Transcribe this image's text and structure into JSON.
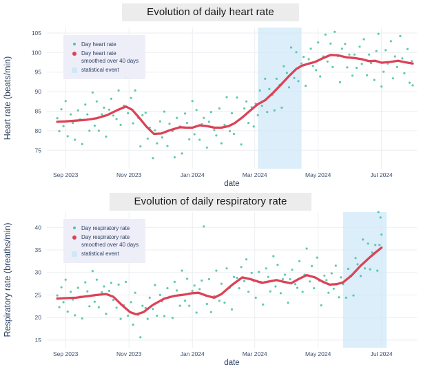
{
  "colors": {
    "scatter_points": "#4fc4a0",
    "smoothed_line": "#dc4257",
    "event_band": "#cfe8f8",
    "gridline": "#ebedf2",
    "axis_text": "#2a3f5f",
    "title_background": "#ececec",
    "legend_background": "#ededf8"
  },
  "chart_data": [
    {
      "type": "scatter",
      "title": "Evolution of daily heart rate",
      "xlabel": "date",
      "ylabel": "Heart rate (beats/min)",
      "x_ticks": [
        "Sep 2023",
        "Nov 2023",
        "Jan 2024",
        "Mar 2024",
        "May 2024",
        "Jul 2024"
      ],
      "x_tick_days": [
        0,
        61,
        122,
        182,
        243,
        304
      ],
      "xlim_days": [
        -18,
        338
      ],
      "y_ticks": [
        75,
        80,
        85,
        90,
        95,
        100,
        105
      ],
      "ylim": [
        70.3,
        106.4
      ],
      "grid": true,
      "legend_position": "top-left",
      "legend_items": [
        {
          "label": "Day heart rate",
          "label2": "",
          "marker": "scatter"
        },
        {
          "label": "Day heart rate",
          "label2": "smoothed over 40 days",
          "marker": "line"
        },
        {
          "label": "statistical event",
          "label2": "",
          "marker": "band"
        }
      ],
      "series": [
        {
          "name": "Day heart rate",
          "type": "points",
          "color": "#4fc4a0",
          "t": [
            -8,
            -6,
            -4,
            -2,
            0,
            2,
            5,
            7,
            9,
            12,
            14,
            16,
            19,
            21,
            23,
            26,
            28,
            30,
            32,
            35,
            37,
            39,
            42,
            44,
            46,
            49,
            51,
            53,
            56,
            58,
            60,
            63,
            65,
            67,
            70,
            72,
            74,
            77,
            79,
            81,
            84,
            86,
            88,
            91,
            93,
            95,
            98,
            100,
            103,
            105,
            107,
            110,
            112,
            115,
            117,
            119,
            122,
            124,
            126,
            129,
            131,
            133,
            136,
            138,
            140,
            143,
            145,
            148,
            150,
            153,
            155,
            158,
            160,
            162,
            165,
            167,
            169,
            172,
            174,
            176,
            179,
            181,
            183,
            185,
            187,
            189,
            192,
            194,
            196,
            199,
            201,
            203,
            206,
            208,
            210,
            213,
            215,
            217,
            220,
            222,
            224,
            227,
            229,
            231,
            234,
            236,
            238,
            241,
            243,
            245,
            248,
            250,
            252,
            255,
            257,
            259,
            262,
            264,
            266,
            269,
            271,
            273,
            276,
            278,
            280,
            283,
            285,
            287,
            290,
            292,
            294,
            297,
            299,
            301,
            304,
            306,
            308,
            310,
            313,
            315,
            317,
            319,
            322,
            324,
            326,
            329,
            331,
            333,
            334
          ],
          "y": [
            83.2,
            79.9,
            85.5,
            81.2,
            87.6,
            78.6,
            84.2,
            82.0,
            77.7,
            85.2,
            82.9,
            76.6,
            86.7,
            84.2,
            80.0,
            89.8,
            81.3,
            87.5,
            80.0,
            84.2,
            85.9,
            78.5,
            85.4,
            88.2,
            83.9,
            83.0,
            90.3,
            81.5,
            86.4,
            93.6,
            84.5,
            88.4,
            81.9,
            90.3,
            83.3,
            76.0,
            84.0,
            84.6,
            78.0,
            80.8,
            73.0,
            80.1,
            76.8,
            82.4,
            78.3,
            84.9,
            76.1,
            81.8,
            79.9,
            73.2,
            83.3,
            81.1,
            74.2,
            84.4,
            82.0,
            77.8,
            87.6,
            79.1,
            85.3,
            77.7,
            81.7,
            83.3,
            75.7,
            82.3,
            84.8,
            80.2,
            78.8,
            85.7,
            76.8,
            81.5,
            88.6,
            79.9,
            84.5,
            79.2,
            88.5,
            82.8,
            76.5,
            85.7,
            87.5,
            82.0,
            86.0,
            81.1,
            86.9,
            84.0,
            90.3,
            86.4,
            93.3,
            84.8,
            90.7,
            89.2,
            85.2,
            93.3,
            91.7,
            85.9,
            96.5,
            94.8,
            91.1,
            101.3,
            93.5,
            100.1,
            92.7,
            97.2,
            98.9,
            91.5,
            98.3,
            101.0,
            96.6,
            95.5,
            102.6,
            93.9,
            99.0,
            104.6,
            97.7,
            102.3,
            96.3,
            105.3,
            99.1,
            92.4,
            101.0,
            102.2,
            96.2,
            99.5,
            94.1,
            99.5,
            96.1,
            101.5,
            97.1,
            103.4,
            94.2,
            99.5,
            97.3,
            93.0,
            100.4,
            104.8,
            91.3,
            95.1,
            100.6,
            97.2,
            102.9,
            93.4,
            99.0,
            96.3,
            104.2,
            98.5,
            94.7,
            100.9,
            92.3,
            97.8,
            91.6
          ]
        },
        {
          "name": "Day heart rate smoothed over 40 days",
          "type": "line",
          "color": "#dc4257",
          "t": [
            -8,
            0,
            10,
            20,
            30,
            40,
            50,
            58,
            64,
            70,
            78,
            85,
            92,
            100,
            110,
            116,
            122,
            129,
            136,
            143,
            150,
            157,
            163,
            170,
            177,
            185,
            192,
            200,
            208,
            215,
            222,
            227,
            233,
            240,
            248,
            255,
            262,
            270,
            278,
            285,
            292,
            298,
            304,
            312,
            320,
            327,
            334
          ],
          "y": [
            82.3,
            82.4,
            82.6,
            82.8,
            83.2,
            84.0,
            85.3,
            86.2,
            85.4,
            83.6,
            81.0,
            79.2,
            79.3,
            80.1,
            80.9,
            80.8,
            80.8,
            81.4,
            81.2,
            80.8,
            80.8,
            81.2,
            82.0,
            83.4,
            85.0,
            86.8,
            87.8,
            89.8,
            92.0,
            94.0,
            95.8,
            96.6,
            97.1,
            97.6,
            98.6,
            99.4,
            99.3,
            98.8,
            98.6,
            98.3,
            97.8,
            97.9,
            97.4,
            97.6,
            97.9,
            97.5,
            97.2
          ]
        },
        {
          "name": "statistical event",
          "type": "band",
          "color": "#cfe8f8",
          "t_range": [
            185,
            227
          ]
        }
      ]
    },
    {
      "type": "scatter",
      "title": "Evolution of daily respiratory rate",
      "xlabel": "date",
      "ylabel": "Respiratory rate (breaths/min)",
      "x_ticks": [
        "Sep 2023",
        "Nov 2023",
        "Jan 2024",
        "Mar 2024",
        "May 2024",
        "Jul 2024"
      ],
      "x_tick_days": [
        0,
        61,
        122,
        182,
        243,
        304
      ],
      "xlim_days": [
        -18,
        338
      ],
      "y_ticks": [
        15,
        20,
        25,
        30,
        35,
        40
      ],
      "ylim": [
        13.3,
        43.4
      ],
      "grid": true,
      "legend_position": "top-left",
      "legend_items": [
        {
          "label": "Day respiratory rate",
          "label2": "",
          "marker": "scatter"
        },
        {
          "label": "Day respiratory rate",
          "label2": "smoothed over 40 days",
          "marker": "line"
        },
        {
          "label": "statistical event",
          "label2": "",
          "marker": "band"
        }
      ],
      "series": [
        {
          "name": "Day respiratory rate",
          "type": "points",
          "color": "#4fc4a0",
          "t": [
            -8,
            -6,
            -4,
            -2,
            0,
            2,
            5,
            7,
            9,
            12,
            14,
            16,
            19,
            21,
            23,
            26,
            28,
            30,
            32,
            35,
            37,
            39,
            42,
            44,
            46,
            49,
            51,
            53,
            56,
            58,
            60,
            63,
            65,
            67,
            70,
            72,
            74,
            77,
            79,
            81,
            84,
            86,
            88,
            91,
            93,
            95,
            98,
            100,
            103,
            105,
            107,
            110,
            112,
            115,
            117,
            119,
            122,
            124,
            126,
            129,
            131,
            133,
            136,
            138,
            140,
            143,
            145,
            148,
            150,
            153,
            155,
            158,
            160,
            162,
            165,
            167,
            169,
            172,
            174,
            176,
            179,
            181,
            183,
            186,
            188,
            190,
            193,
            195,
            197,
            200,
            202,
            204,
            207,
            209,
            211,
            214,
            216,
            218,
            221,
            223,
            225,
            228,
            230,
            232,
            235,
            237,
            239,
            242,
            244,
            246,
            249,
            251,
            253,
            256,
            258,
            260,
            263,
            265,
            267,
            270,
            272,
            274,
            277,
            279,
            281,
            284,
            286,
            288,
            291,
            293,
            295,
            298,
            300,
            301,
            302,
            303,
            304
          ],
          "y": [
            24.9,
            22.3,
            26.7,
            23.4,
            28.4,
            21.3,
            25.7,
            24.0,
            20.5,
            26.6,
            24.6,
            19.8,
            27.8,
            25.8,
            22.5,
            30.3,
            23.5,
            28.4,
            22.3,
            25.6,
            26.9,
            20.8,
            25.9,
            27.7,
            23.9,
            22.2,
            27.3,
            19.7,
            22.7,
            27.9,
            20.4,
            23.4,
            18.4,
            25.5,
            20.6,
            15.6,
            22.6,
            22.1,
            19.7,
            24.4,
            21.9,
            27.2,
            20.4,
            25.0,
            23.6,
            20.3,
            26.5,
            24.6,
            19.9,
            27.9,
            26.0,
            22.6,
            30.4,
            23.7,
            28.6,
            22.6,
            25.9,
            27.1,
            21.1,
            26.3,
            28.2,
            40.2,
            23.0,
            28.5,
            21.2,
            24.7,
            30.4,
            23.7,
            27.5,
            23.3,
            30.9,
            26.6,
            21.8,
            29.0,
            28.8,
            26.5,
            31.2,
            28.1,
            32.9,
            25.7,
            29.9,
            28.1,
            24.4,
            30.1,
            27.9,
            22.9,
            30.9,
            29.0,
            25.8,
            33.6,
            26.9,
            31.7,
            25.4,
            28.5,
            29.5,
            23.3,
            28.5,
            30.6,
            27.4,
            26.6,
            32.5,
            25.7,
            29.5,
            35.3,
            28.0,
            31.4,
            26.5,
            33.3,
            28.2,
            22.7,
            29.3,
            28.3,
            25.5,
            29.8,
            26.4,
            31.5,
            24.5,
            28.9,
            27.4,
            24.4,
            30.8,
            29.2,
            24.9,
            33.2,
            31.8,
            29.2,
            37.3,
            30.9,
            36.4,
            30.7,
            34.4,
            36.1,
            30.4,
            43.4,
            36.1,
            42.2,
            38.4
          ]
        },
        {
          "name": "Day respiratory rate smoothed over 40 days",
          "type": "line",
          "color": "#dc4257",
          "t": [
            -8,
            0,
            10,
            20,
            30,
            39,
            46,
            54,
            62,
            68,
            75,
            84,
            95,
            105,
            115,
            122,
            128,
            136,
            143,
            150,
            160,
            170,
            178,
            189,
            196,
            203,
            210,
            217,
            224,
            232,
            240,
            247,
            254,
            261,
            267,
            275,
            284,
            292,
            298,
            304
          ],
          "y": [
            24.2,
            24.3,
            24.4,
            24.7,
            25.0,
            25.2,
            24.6,
            22.8,
            21.2,
            20.7,
            21.2,
            22.8,
            24.2,
            24.8,
            25.1,
            25.4,
            25.5,
            24.8,
            24.4,
            25.2,
            27.2,
            28.9,
            28.5,
            27.7,
            28.0,
            28.3,
            27.9,
            27.6,
            28.5,
            29.4,
            28.9,
            28.0,
            27.3,
            27.4,
            27.8,
            29.3,
            31.5,
            33.2,
            34.4,
            35.5
          ]
        },
        {
          "name": "statistical event",
          "type": "band",
          "color": "#cfe8f8",
          "t_range": [
            267,
            309
          ]
        }
      ]
    }
  ]
}
